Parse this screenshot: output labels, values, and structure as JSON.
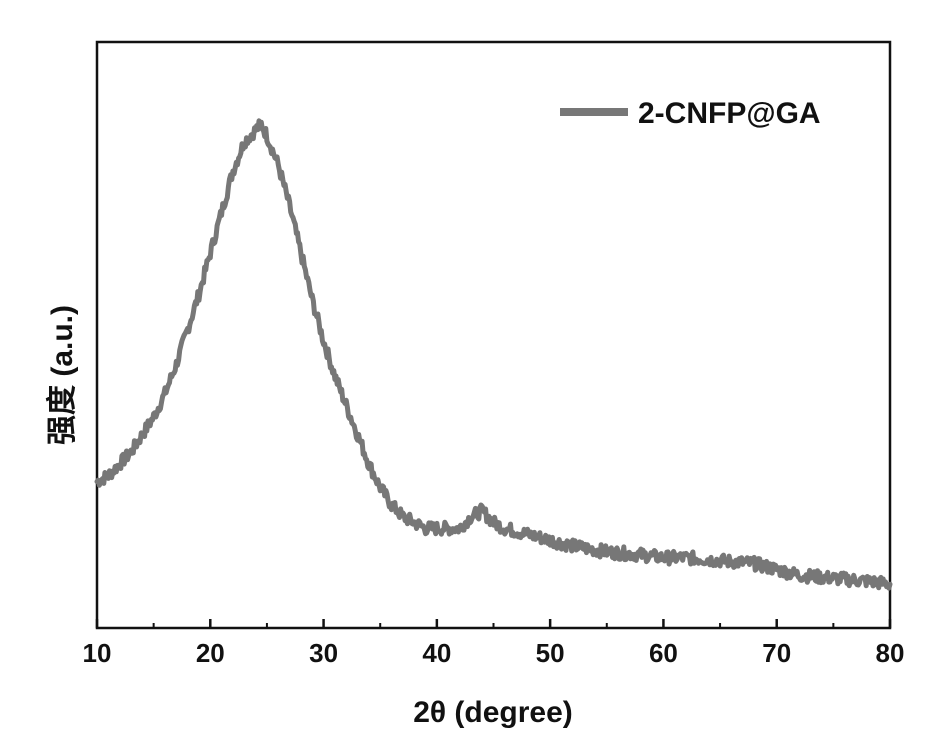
{
  "chart_data": {
    "type": "line",
    "title": "",
    "xlabel": "2θ (degree)",
    "ylabel": "强度 (a.u.)",
    "xlim": [
      10,
      80
    ],
    "ylim": [
      0,
      1
    ],
    "x_ticks": [
      10,
      20,
      30,
      40,
      50,
      60,
      70,
      80
    ],
    "y_ticks_labeled": false,
    "grid": false,
    "legend": "top-right",
    "series": [
      {
        "name": "2-CNFP@GA",
        "color": "#777777",
        "x": [
          10,
          11,
          12,
          13,
          14,
          15,
          16,
          17,
          18,
          19,
          20,
          21,
          22,
          23,
          24,
          24.5,
          25,
          26,
          27,
          28,
          29,
          30,
          31,
          32,
          33,
          34,
          35,
          36,
          37,
          38,
          39,
          40,
          41,
          42,
          43,
          44,
          45,
          46,
          48,
          50,
          52,
          55,
          58,
          60,
          62,
          65,
          68,
          70,
          72,
          75,
          78,
          80
        ],
        "y": [
          0.25,
          0.26,
          0.28,
          0.3,
          0.33,
          0.36,
          0.4,
          0.45,
          0.51,
          0.57,
          0.64,
          0.71,
          0.78,
          0.83,
          0.85,
          0.86,
          0.84,
          0.79,
          0.72,
          0.64,
          0.56,
          0.49,
          0.43,
          0.38,
          0.33,
          0.28,
          0.24,
          0.21,
          0.19,
          0.18,
          0.17,
          0.17,
          0.17,
          0.17,
          0.19,
          0.2,
          0.18,
          0.17,
          0.16,
          0.15,
          0.14,
          0.13,
          0.125,
          0.12,
          0.12,
          0.115,
          0.11,
          0.1,
          0.09,
          0.085,
          0.08,
          0.075
        ]
      }
    ]
  }
}
